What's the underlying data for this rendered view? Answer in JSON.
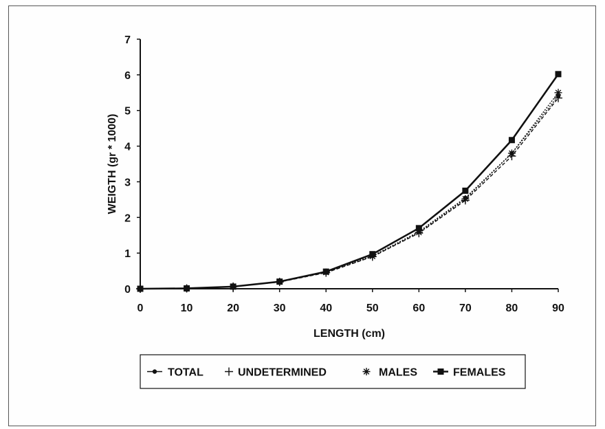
{
  "chart_data": {
    "type": "line",
    "title": "",
    "xlabel": "LENGTH (cm)",
    "ylabel": "WEIGTH (gr * 1000)",
    "xlim": [
      0,
      90
    ],
    "ylim": [
      0,
      7
    ],
    "x": [
      0,
      10,
      20,
      30,
      40,
      50,
      60,
      70,
      80,
      90
    ],
    "x_ticks": [
      "0",
      "10",
      "20",
      "30",
      "40",
      "50",
      "60",
      "70",
      "80",
      "90"
    ],
    "y_ticks": [
      "0",
      "1",
      "2",
      "3",
      "4",
      "5",
      "6",
      "7"
    ],
    "grid": false,
    "legend_position": "bottom",
    "series": [
      {
        "name": "TOTAL",
        "marker": "dot",
        "line": "dotted",
        "values": [
          0,
          0.01,
          0.06,
          0.2,
          0.47,
          0.92,
          1.6,
          2.55,
          3.8,
          5.4
        ]
      },
      {
        "name": "UNDETERMINED",
        "marker": "plus",
        "line": "dashed",
        "values": [
          0,
          0.01,
          0.06,
          0.19,
          0.45,
          0.9,
          1.56,
          2.48,
          3.72,
          5.35
        ]
      },
      {
        "name": "MALES",
        "marker": "star",
        "line": "dotted",
        "values": [
          0,
          0.01,
          0.06,
          0.2,
          0.46,
          0.91,
          1.58,
          2.52,
          3.8,
          5.5
        ]
      },
      {
        "name": "FEMALES",
        "marker": "square",
        "line": "solid",
        "values": [
          0,
          0.01,
          0.06,
          0.2,
          0.48,
          0.97,
          1.7,
          2.75,
          4.17,
          6.02
        ]
      }
    ]
  }
}
